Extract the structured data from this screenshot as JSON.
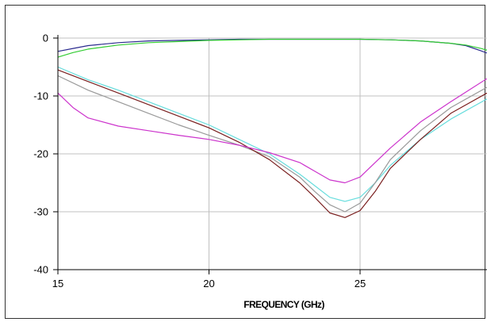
{
  "chart_data": {
    "type": "line",
    "title": "",
    "xlabel": "FREQUENCY (GHz)",
    "ylabel": "",
    "xlim": [
      15,
      29.2
    ],
    "ylim": [
      -40,
      0
    ],
    "xticks": [
      15,
      20,
      25
    ],
    "yticks": [
      0,
      -10,
      -20,
      -30,
      -40
    ],
    "xtick_labels": [
      "15",
      "20",
      "25"
    ],
    "ytick_labels": [
      "0",
      "-10",
      "-20",
      "-30",
      "-40"
    ],
    "grid": true,
    "legend": "none",
    "series": [
      {
        "color": "#2b2b8f",
        "x": [
          15,
          15.5,
          16,
          17,
          18,
          19,
          20,
          21,
          22,
          23,
          24,
          25,
          26,
          27,
          28,
          28.5,
          29,
          29.2
        ],
        "y": [
          -2.3,
          -1.8,
          -1.3,
          -0.8,
          -0.5,
          -0.4,
          -0.3,
          -0.2,
          -0.2,
          -0.2,
          -0.2,
          -0.2,
          -0.3,
          -0.5,
          -0.9,
          -1.3,
          -2.2,
          -2.6
        ]
      },
      {
        "color": "#33cc33",
        "x": [
          15,
          15.5,
          16,
          17,
          18,
          19,
          20,
          21,
          22,
          23,
          24,
          25,
          26,
          27,
          28,
          28.5,
          29,
          29.2
        ],
        "y": [
          -3.3,
          -2.5,
          -1.9,
          -1.2,
          -0.8,
          -0.6,
          -0.4,
          -0.3,
          -0.2,
          -0.2,
          -0.2,
          -0.2,
          -0.3,
          -0.5,
          -0.9,
          -1.2,
          -1.8,
          -2.1
        ]
      },
      {
        "color": "#66dddd",
        "x": [
          15,
          16,
          17,
          18,
          19,
          20,
          21,
          22,
          23,
          23.5,
          24,
          24.5,
          25,
          25.5,
          26,
          27,
          28,
          29.2
        ],
        "y": [
          -5.0,
          -7.2,
          -9.0,
          -11.0,
          -13.0,
          -15.0,
          -17.5,
          -20.0,
          -23.5,
          -25.5,
          -27.5,
          -28.2,
          -27.5,
          -25.0,
          -22.0,
          -17.5,
          -14.0,
          -10.5
        ]
      },
      {
        "color": "#999999",
        "x": [
          15,
          16,
          17,
          18,
          19,
          20,
          21,
          22,
          23,
          23.5,
          24,
          24.5,
          25,
          25.5,
          26,
          27,
          28,
          29.2
        ],
        "y": [
          -6.5,
          -9.0,
          -11.0,
          -13.0,
          -15.0,
          -16.8,
          -18.5,
          -20.5,
          -24.0,
          -26.5,
          -28.8,
          -30.0,
          -28.5,
          -25.0,
          -21.0,
          -16.0,
          -12.0,
          -8.5
        ]
      },
      {
        "color": "#7a1f1f",
        "x": [
          15,
          16,
          17,
          18,
          19,
          20,
          21,
          22,
          23,
          23.5,
          24,
          24.5,
          25,
          25.5,
          26,
          27,
          28,
          29.2
        ],
        "y": [
          -5.5,
          -7.5,
          -9.5,
          -11.5,
          -13.5,
          -15.5,
          -18.0,
          -21.0,
          -25.0,
          -27.5,
          -30.2,
          -31.0,
          -29.8,
          -26.5,
          -22.5,
          -17.5,
          -13.0,
          -9.5
        ]
      },
      {
        "color": "#cc33cc",
        "x": [
          15,
          15.5,
          16,
          17,
          18,
          19,
          20,
          21,
          22,
          23,
          23.5,
          24,
          24.5,
          25,
          25.5,
          26,
          27,
          28,
          29.2
        ],
        "y": [
          -9.5,
          -12.0,
          -13.8,
          -15.2,
          -16.0,
          -16.8,
          -17.5,
          -18.5,
          -19.8,
          -21.5,
          -23.0,
          -24.5,
          -25.0,
          -24.0,
          -21.5,
          -19.0,
          -14.5,
          -11.0,
          -7.0
        ]
      }
    ]
  }
}
